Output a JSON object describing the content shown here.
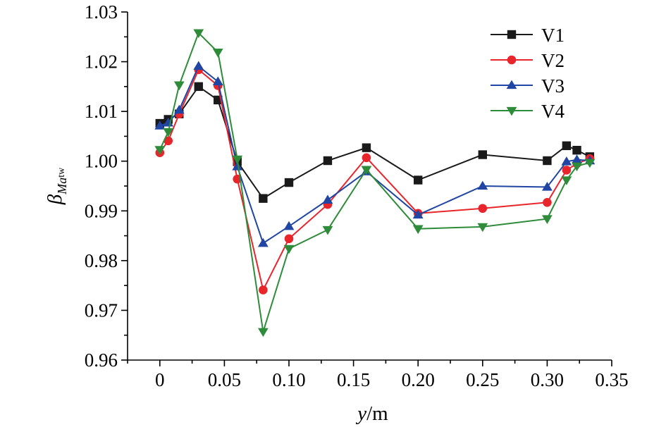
{
  "chart_data": {
    "type": "line",
    "xlabel": {
      "italic": "y",
      "text": "/m"
    },
    "ylabel": {
      "symbol": "β",
      "subscript_italic": "Ma",
      "subscript_small": "tw"
    },
    "xlim": [
      -0.025,
      0.35
    ],
    "ylim": [
      0.96,
      1.03
    ],
    "xticks": [
      0,
      0.05,
      0.1,
      0.15,
      0.2,
      0.25,
      0.3,
      0.35
    ],
    "xtick_labels": [
      "0",
      "0.05",
      "0.10",
      "0.15",
      "0.20",
      "0.25",
      "0.30",
      "0.35"
    ],
    "yticks": [
      0.96,
      0.97,
      0.98,
      0.99,
      1.0,
      1.01,
      1.02,
      1.03
    ],
    "ytick_labels": [
      "0.96",
      "0.97",
      "0.98",
      "0.99",
      "1.00",
      "1.01",
      "1.02",
      "1.03"
    ],
    "grid": false,
    "legend_position": "top-right",
    "x": [
      0,
      0.0065,
      0.015,
      0.03,
      0.045,
      0.06,
      0.08,
      0.1,
      0.13,
      0.16,
      0.2,
      0.25,
      0.3,
      0.315,
      0.323,
      0.333
    ],
    "series": [
      {
        "name": "V1",
        "color": "#1a1a1a",
        "marker": "square",
        "values": [
          1.0076,
          1.0084,
          1.0095,
          1.015,
          1.0123,
          0.9999,
          0.9925,
          0.9957,
          1.0001,
          1.0027,
          0.9962,
          1.0013,
          1.0001,
          1.0031,
          1.0022,
          1.0009
        ]
      },
      {
        "name": "V2",
        "color": "#e8252b",
        "marker": "circle",
        "values": [
          1.0017,
          1.0041,
          1.0095,
          1.0184,
          1.0152,
          0.9964,
          0.9741,
          0.9844,
          0.9913,
          1.0007,
          0.9895,
          0.9905,
          0.9917,
          0.9982,
          0.9995,
          1.0005
        ]
      },
      {
        "name": "V3",
        "color": "#2045a3",
        "marker": "triangle-up",
        "values": [
          1.0071,
          1.0077,
          1.0103,
          1.0191,
          1.016,
          0.9989,
          0.9835,
          0.9869,
          0.9922,
          0.9979,
          0.9892,
          0.995,
          0.9948,
          0.9999,
          1.0003,
          1.0001
        ]
      },
      {
        "name": "V4",
        "color": "#2e8b3a",
        "marker": "triangle-down",
        "values": [
          1.0023,
          1.0059,
          1.0153,
          1.0258,
          1.0219,
          1.0004,
          0.9657,
          0.9824,
          0.9862,
          0.9983,
          0.9864,
          0.9868,
          0.9884,
          0.9962,
          0.999,
          0.9997
        ]
      }
    ]
  }
}
